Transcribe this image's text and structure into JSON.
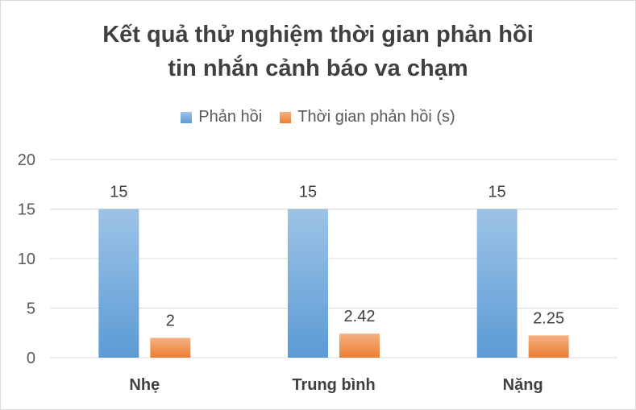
{
  "chart_data": {
    "type": "bar",
    "title_lines": [
      "Kết quả thử nghiệm thời gian phản hồi",
      "tin nhắn cảnh báo va chạm"
    ],
    "categories": [
      "Nhẹ",
      "Trung bình",
      "Nặng"
    ],
    "series": [
      {
        "name": "Phản hồi",
        "values": [
          15,
          15,
          15
        ],
        "labels": [
          "15",
          "15",
          "15"
        ],
        "color": "#5b9bd5"
      },
      {
        "name": "Thời gian phản hồi (s)",
        "values": [
          2,
          2.42,
          2.25
        ],
        "labels": [
          "2",
          "2.42",
          "2.25"
        ],
        "color": "#ed7d31"
      }
    ],
    "ylim": [
      0,
      20
    ],
    "yticks": [
      "0",
      "5",
      "10",
      "15",
      "20"
    ],
    "grid": true,
    "legend_position": "top"
  }
}
